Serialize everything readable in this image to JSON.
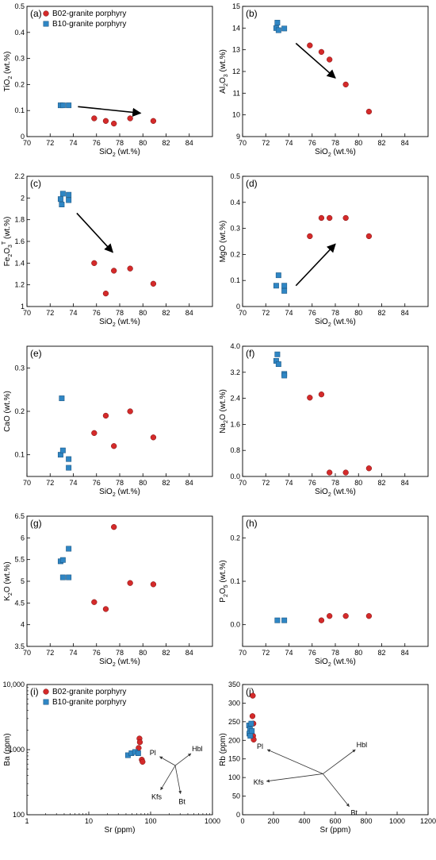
{
  "colors": {
    "b02": "#d42a2a",
    "b10": "#2f86c4",
    "axis": "#000000",
    "arrow": "#000000"
  },
  "legend": {
    "b02": "B02-granite porphyry",
    "b10": "B10-granite porphyry"
  },
  "chart_data": [
    {
      "type": "scatter",
      "panel_label": "(a)",
      "xlabel": "SiO2 (wt.%)",
      "ylabel": "TiO2 (wt.%)",
      "xlim": [
        70,
        86
      ],
      "ylim": [
        0,
        0.5
      ],
      "x_ticks": [
        70,
        72,
        74,
        76,
        78,
        80,
        82,
        84
      ],
      "y_ticks": [
        0,
        0.1,
        0.2,
        0.3,
        0.4,
        0.5
      ],
      "legend": "top-left",
      "series": [
        {
          "name": "B02-granite porphyry",
          "marker": "circle",
          "points": [
            [
              75.8,
              0.07
            ],
            [
              76.8,
              0.06
            ],
            [
              77.5,
              0.05
            ],
            [
              78.9,
              0.07
            ],
            [
              80.9,
              0.06
            ]
          ]
        },
        {
          "name": "B10-granite porphyry",
          "marker": "square",
          "points": [
            [
              72.9,
              0.12
            ],
            [
              73.1,
              0.12
            ],
            [
              73.6,
              0.12
            ]
          ]
        }
      ],
      "arrows": [
        {
          "from": [
            74.4,
            0.115
          ],
          "to": [
            79.8,
            0.09
          ]
        }
      ]
    },
    {
      "type": "scatter",
      "panel_label": "(b)",
      "xlabel": "SiO2 (wt.%)",
      "ylabel": "Al2O3 (wt.%)",
      "xlim": [
        70,
        86
      ],
      "ylim": [
        9,
        15
      ],
      "x_ticks": [
        70,
        72,
        74,
        76,
        78,
        80,
        82,
        84
      ],
      "y_ticks": [
        9,
        10,
        11,
        12,
        13,
        14,
        15
      ],
      "series": [
        {
          "name": "B02-granite porphyry",
          "marker": "circle",
          "points": [
            [
              75.8,
              13.2
            ],
            [
              76.8,
              12.9
            ],
            [
              77.5,
              12.55
            ],
            [
              78.9,
              11.4
            ],
            [
              80.9,
              10.15
            ]
          ]
        },
        {
          "name": "B10-granite porphyry",
          "marker": "square",
          "points": [
            [
              72.9,
              14.0
            ],
            [
              73.0,
              14.25
            ],
            [
              73.1,
              13.9
            ],
            [
              73.6,
              13.98
            ]
          ]
        }
      ],
      "arrows": [
        {
          "from": [
            74.6,
            13.3
          ],
          "to": [
            78.0,
            11.7
          ]
        }
      ]
    },
    {
      "type": "scatter",
      "panel_label": "(c)",
      "xlabel": "SiO2 (wt.%)",
      "ylabel": "Fe2O3T (wt.%)",
      "xlim": [
        70,
        86
      ],
      "ylim": [
        1.0,
        2.2
      ],
      "x_ticks": [
        70,
        72,
        74,
        76,
        78,
        80,
        82,
        84
      ],
      "y_ticks": [
        1.0,
        1.2,
        1.4,
        1.6,
        1.8,
        2.0,
        2.2
      ],
      "series": [
        {
          "name": "B02-granite porphyry",
          "marker": "circle",
          "points": [
            [
              75.8,
              1.4
            ],
            [
              76.8,
              1.12
            ],
            [
              77.5,
              1.33
            ],
            [
              78.9,
              1.35
            ],
            [
              80.9,
              1.21
            ]
          ]
        },
        {
          "name": "B10-granite porphyry",
          "marker": "square",
          "points": [
            [
              72.9,
              1.99
            ],
            [
              73.1,
              2.04
            ],
            [
              73.0,
              1.94
            ],
            [
              73.6,
              1.98
            ],
            [
              73.6,
              2.03
            ]
          ]
        }
      ],
      "arrows": [
        {
          "from": [
            74.3,
            1.86
          ],
          "to": [
            77.4,
            1.5
          ]
        }
      ]
    },
    {
      "type": "scatter",
      "panel_label": "(d)",
      "xlabel": "SiO2 (wt.%)",
      "ylabel": "MgO (wt.%)",
      "xlim": [
        70,
        86
      ],
      "ylim": [
        0,
        0.5
      ],
      "x_ticks": [
        70,
        72,
        74,
        76,
        78,
        80,
        82,
        84
      ],
      "y_ticks": [
        0,
        0.1,
        0.2,
        0.3,
        0.4,
        0.5
      ],
      "series": [
        {
          "name": "B02-granite porphyry",
          "marker": "circle",
          "points": [
            [
              75.8,
              0.27
            ],
            [
              76.8,
              0.34
            ],
            [
              77.5,
              0.34
            ],
            [
              78.9,
              0.34
            ],
            [
              80.9,
              0.27
            ]
          ]
        },
        {
          "name": "B10-granite porphyry",
          "marker": "square",
          "points": [
            [
              72.9,
              0.08
            ],
            [
              73.1,
              0.12
            ],
            [
              73.6,
              0.08
            ],
            [
              73.6,
              0.06
            ]
          ]
        }
      ],
      "arrows": [
        {
          "from": [
            74.6,
            0.08
          ],
          "to": [
            78.0,
            0.24
          ]
        }
      ]
    },
    {
      "type": "scatter",
      "panel_label": "(e)",
      "xlabel": "SiO2 (wt.%)",
      "ylabel": "CaO (wt.%)",
      "xlim": [
        70,
        86
      ],
      "ylim": [
        0.05,
        0.35
      ],
      "x_ticks": [
        70,
        72,
        74,
        76,
        78,
        80,
        82,
        84
      ],
      "y_ticks": [
        0.1,
        0.2,
        0.3
      ],
      "series": [
        {
          "name": "B02-granite porphyry",
          "marker": "circle",
          "points": [
            [
              75.8,
              0.15
            ],
            [
              76.8,
              0.19
            ],
            [
              77.5,
              0.12
            ],
            [
              78.9,
              0.2
            ],
            [
              80.9,
              0.14
            ]
          ]
        },
        {
          "name": "B10-granite porphyry",
          "marker": "square",
          "points": [
            [
              73.0,
              0.23
            ],
            [
              72.9,
              0.1
            ],
            [
              73.1,
              0.11
            ],
            [
              73.6,
              0.09
            ],
            [
              73.6,
              0.07
            ]
          ]
        }
      ]
    },
    {
      "type": "scatter",
      "panel_label": "(f)",
      "xlabel": "SiO2 (wt.%)",
      "ylabel": "Na2O (wt.%)",
      "xlim": [
        70,
        86
      ],
      "ylim": [
        0,
        4.0
      ],
      "x_ticks": [
        70,
        72,
        74,
        76,
        78,
        80,
        82,
        84
      ],
      "y_ticks": [
        0,
        0.8,
        1.6,
        2.4,
        3.2,
        4.0
      ],
      "y_tick_labels": [
        "0.0",
        "0.8",
        "1.6",
        "2.4",
        "3.2",
        "4.0"
      ],
      "series": [
        {
          "name": "B02-granite porphyry",
          "marker": "circle",
          "points": [
            [
              75.8,
              2.42
            ],
            [
              76.8,
              2.52
            ],
            [
              77.5,
              0.12
            ],
            [
              78.9,
              0.12
            ],
            [
              80.9,
              0.25
            ]
          ]
        },
        {
          "name": "B10-granite porphyry",
          "marker": "square",
          "points": [
            [
              73.0,
              3.75
            ],
            [
              72.9,
              3.55
            ],
            [
              73.1,
              3.45
            ],
            [
              73.6,
              3.15
            ],
            [
              73.6,
              3.1
            ]
          ]
        }
      ]
    },
    {
      "type": "scatter",
      "panel_label": "(g)",
      "xlabel": "SiO2 (wt.%)",
      "ylabel": "K2O (wt.%)",
      "xlim": [
        70,
        86
      ],
      "ylim": [
        3.5,
        6.5
      ],
      "x_ticks": [
        70,
        72,
        74,
        76,
        78,
        80,
        82,
        84
      ],
      "y_ticks": [
        3.5,
        4.0,
        4.5,
        5.0,
        5.5,
        6.0,
        6.5
      ],
      "series": [
        {
          "name": "B02-granite porphyry",
          "marker": "circle",
          "points": [
            [
              75.8,
              4.52
            ],
            [
              76.8,
              4.36
            ],
            [
              77.5,
              6.25
            ],
            [
              78.9,
              4.96
            ],
            [
              80.9,
              4.93
            ]
          ]
        },
        {
          "name": "B10-granite porphyry",
          "marker": "square",
          "points": [
            [
              72.9,
              5.46
            ],
            [
              73.1,
              5.49
            ],
            [
              73.6,
              5.75
            ],
            [
              73.1,
              5.09
            ],
            [
              73.6,
              5.09
            ]
          ]
        }
      ]
    },
    {
      "type": "scatter",
      "panel_label": "(h)",
      "xlabel": "SiO2 (wt.%)",
      "ylabel": "P2O5 (wt.%)",
      "xlim": [
        70,
        86
      ],
      "ylim": [
        -0.05,
        0.25
      ],
      "x_ticks": [
        70,
        72,
        74,
        76,
        78,
        80,
        82,
        84
      ],
      "y_ticks": [
        0,
        0.1,
        0.2
      ],
      "y_tick_labels": [
        "0.0",
        "0.1",
        "0.2"
      ],
      "series": [
        {
          "name": "B02-granite porphyry",
          "marker": "circle",
          "points": [
            [
              76.8,
              0.01
            ],
            [
              77.5,
              0.02
            ],
            [
              78.9,
              0.02
            ],
            [
              80.9,
              0.02
            ]
          ]
        },
        {
          "name": "B10-granite porphyry",
          "marker": "square",
          "points": [
            [
              73.0,
              0.01
            ],
            [
              73.6,
              0.01
            ]
          ]
        }
      ]
    },
    {
      "type": "scatter",
      "panel_label": "(i)",
      "xlabel": "Sr (ppm)",
      "ylabel": "Ba (ppm)",
      "xscale": "log",
      "yscale": "log",
      "xlim": [
        1,
        1000
      ],
      "ylim": [
        100,
        10000
      ],
      "x_ticks": [
        1,
        10,
        100,
        1000
      ],
      "y_ticks": [
        100,
        1000,
        10000
      ],
      "x_tick_labels": [
        "1",
        "10",
        "100",
        "1000"
      ],
      "y_tick_labels": [
        "100",
        "1000",
        "10,000"
      ],
      "legend": "top-left",
      "series": [
        {
          "name": "B02-granite porphyry",
          "marker": "circle",
          "points": [
            [
              66,
              1480
            ],
            [
              67,
              1300
            ],
            [
              64,
              1060
            ],
            [
              72,
              700
            ],
            [
              74,
              650
            ]
          ]
        },
        {
          "name": "B10-granite porphyry",
          "marker": "square",
          "points": [
            [
              43,
              820
            ],
            [
              49,
              880
            ],
            [
              56,
              920
            ],
            [
              63,
              880
            ]
          ]
        }
      ],
      "vectors": {
        "origin": [
          250,
          570
        ],
        "items": [
          {
            "label": "Pl",
            "to": [
              140,
              780
            ]
          },
          {
            "label": "Hbl",
            "to": [
              450,
              870
            ]
          },
          {
            "label": "Kfs",
            "to": [
              145,
              240
            ]
          },
          {
            "label": "Bt",
            "to": [
              305,
              210
            ]
          }
        ]
      }
    },
    {
      "type": "scatter",
      "panel_label": "(j)",
      "xlabel": "Sr (ppm)",
      "ylabel": "Rb (ppm)",
      "xlim": [
        0,
        1200
      ],
      "ylim": [
        0,
        350
      ],
      "x_ticks": [
        0,
        200,
        400,
        600,
        800,
        1000,
        1200
      ],
      "y_ticks": [
        0,
        50,
        100,
        150,
        200,
        250,
        300,
        350
      ],
      "series": [
        {
          "name": "B02-granite porphyry",
          "marker": "circle",
          "points": [
            [
              66,
              320
            ],
            [
              64,
              265
            ],
            [
              70,
              245
            ],
            [
              68,
              212
            ],
            [
              72,
              202
            ]
          ]
        },
        {
          "name": "B10-granite porphyry",
          "marker": "square",
          "points": [
            [
              42,
              240
            ],
            [
              48,
              230
            ],
            [
              56,
              245
            ],
            [
              44,
              218
            ],
            [
              60,
              225
            ],
            [
              50,
              212
            ]
          ]
        }
      ],
      "vectors": {
        "origin": [
          520,
          110
        ],
        "items": [
          {
            "label": "Pl",
            "to": [
              160,
              175
            ]
          },
          {
            "label": "Hbl",
            "to": [
              730,
              175
            ]
          },
          {
            "label": "Kfs",
            "to": [
              155,
              90
            ]
          },
          {
            "label": "Bt",
            "to": [
              690,
              22
            ]
          }
        ]
      }
    }
  ]
}
